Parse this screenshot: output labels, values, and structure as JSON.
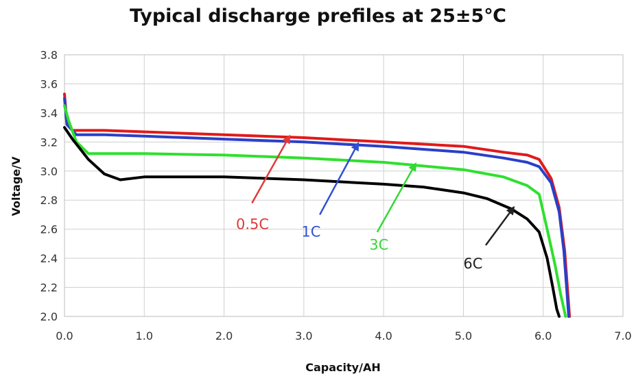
{
  "chart_data": {
    "type": "line",
    "title": "Typical discharge prefiles at 25±5℃",
    "xlabel": "Capacity/AH",
    "ylabel": "Voltage/V",
    "xlim": [
      0,
      7
    ],
    "ylim": [
      2.0,
      3.8
    ],
    "xticks": [
      "0.0",
      "1.0",
      "2.0",
      "3.0",
      "4.0",
      "5.0",
      "6.0",
      "7.0"
    ],
    "yticks": [
      "2.0",
      "2.2",
      "2.4",
      "2.6",
      "2.8",
      "3.0",
      "3.2",
      "3.4",
      "3.6",
      "3.8"
    ],
    "grid": true,
    "series": [
      {
        "name": "0.5C",
        "color": "#e11a1a",
        "label_color": "#e03a3a",
        "x": [
          0,
          0.03,
          0.1,
          0.5,
          1.0,
          2.0,
          3.0,
          4.0,
          5.0,
          5.5,
          5.8,
          5.95,
          6.1,
          6.2,
          6.27,
          6.31,
          6.33
        ],
        "y": [
          3.53,
          3.33,
          3.28,
          3.28,
          3.27,
          3.25,
          3.23,
          3.2,
          3.17,
          3.13,
          3.11,
          3.08,
          2.95,
          2.75,
          2.45,
          2.15,
          2.0
        ]
      },
      {
        "name": "1C",
        "color": "#2a3fc8",
        "label_color": "#3050d0",
        "x": [
          0,
          0.03,
          0.15,
          0.5,
          1.0,
          2.0,
          3.0,
          4.0,
          5.0,
          5.5,
          5.8,
          5.95,
          6.1,
          6.2,
          6.26,
          6.3,
          6.32
        ],
        "y": [
          3.5,
          3.32,
          3.25,
          3.25,
          3.24,
          3.22,
          3.2,
          3.17,
          3.13,
          3.09,
          3.06,
          3.03,
          2.92,
          2.72,
          2.45,
          2.15,
          2.0
        ]
      },
      {
        "name": "3C",
        "color": "#2ee02e",
        "label_color": "#34d834",
        "x": [
          0,
          0.05,
          0.15,
          0.3,
          0.6,
          1.0,
          2.0,
          3.0,
          4.0,
          5.0,
          5.5,
          5.8,
          5.95,
          6.05,
          6.15,
          6.22,
          6.28
        ],
        "y": [
          3.45,
          3.35,
          3.2,
          3.12,
          3.12,
          3.12,
          3.11,
          3.09,
          3.06,
          3.01,
          2.96,
          2.9,
          2.84,
          2.6,
          2.35,
          2.15,
          2.0
        ]
      },
      {
        "name": "6C",
        "color": "#000000",
        "label_color": "#222222",
        "x": [
          0,
          0.1,
          0.3,
          0.5,
          0.7,
          1.0,
          2.0,
          3.0,
          4.0,
          4.5,
          5.0,
          5.3,
          5.6,
          5.8,
          5.95,
          6.05,
          6.12,
          6.17,
          6.2
        ],
        "y": [
          3.3,
          3.22,
          3.08,
          2.98,
          2.94,
          2.96,
          2.96,
          2.94,
          2.91,
          2.89,
          2.85,
          2.81,
          2.74,
          2.67,
          2.58,
          2.4,
          2.2,
          2.05,
          2.0
        ]
      }
    ],
    "annotations": [
      {
        "text": "0.5C",
        "color": "#e03a3a",
        "label_x": 2.15,
        "label_y": 2.6,
        "arrow_from": [
          2.35,
          2.78
        ],
        "arrow_to": [
          2.82,
          3.24
        ]
      },
      {
        "text": "1C",
        "color": "#3050d0",
        "label_x": 2.97,
        "label_y": 2.55,
        "arrow_from": [
          3.2,
          2.7
        ],
        "arrow_to": [
          3.68,
          3.19
        ]
      },
      {
        "text": "3C",
        "color": "#34d834",
        "label_x": 3.82,
        "label_y": 2.46,
        "arrow_from": [
          3.92,
          2.58
        ],
        "arrow_to": [
          4.4,
          3.05
        ]
      },
      {
        "text": "6C",
        "color": "#222222",
        "label_x": 5.0,
        "label_y": 2.33,
        "arrow_from": [
          5.28,
          2.49
        ],
        "arrow_to": [
          5.63,
          2.75
        ]
      }
    ]
  }
}
